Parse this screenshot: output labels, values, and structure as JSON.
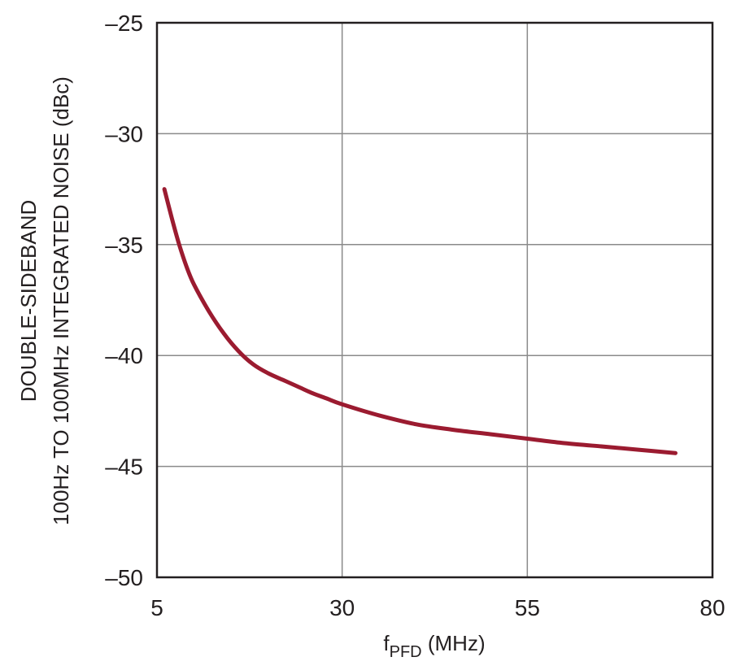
{
  "chart_data": {
    "type": "line",
    "title": "",
    "xlabel_main": "f",
    "xlabel_sub": "PFD",
    "xlabel_unit": " (MHz)",
    "ylabel_line1": "DOUBLE-SIDEBAND",
    "ylabel_line2": "100Hz TO 100MHz INTEGRATED NOISE (dBc)",
    "xlim": [
      5,
      80
    ],
    "ylim": [
      -50,
      -25
    ],
    "xticks": [
      5,
      30,
      55,
      80
    ],
    "xtick_labels": [
      "5",
      "30",
      "55",
      "80"
    ],
    "yticks": [
      -25,
      -30,
      -35,
      -40,
      -45,
      -50
    ],
    "ytick_labels": [
      "–25",
      "–30",
      "–35",
      "–40",
      "–45",
      "–50"
    ],
    "grid": true,
    "series": [
      {
        "color": "#9b1b30",
        "x": [
          6,
          7,
          8,
          9,
          10,
          12,
          14,
          16,
          18,
          20,
          22,
          24,
          26,
          28,
          30,
          35,
          40,
          45,
          50,
          55,
          60,
          65,
          70,
          75
        ],
        "y": [
          -32.5,
          -33.8,
          -35.0,
          -36.0,
          -36.8,
          -38.0,
          -39.0,
          -39.8,
          -40.4,
          -40.8,
          -41.1,
          -41.4,
          -41.7,
          -41.95,
          -42.2,
          -42.7,
          -43.1,
          -43.35,
          -43.55,
          -43.75,
          -43.95,
          -44.1,
          -44.25,
          -44.4
        ]
      }
    ]
  }
}
